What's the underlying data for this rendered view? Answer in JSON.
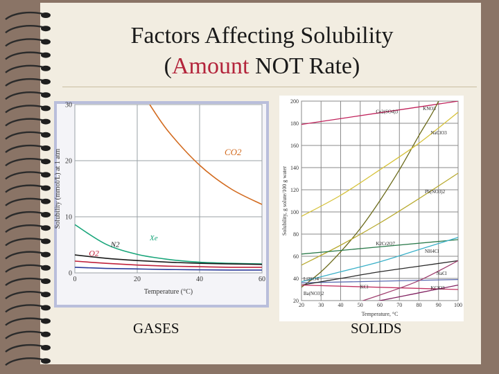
{
  "slide": {
    "title_line1": "Factors Affecting Solubility",
    "title_line2_open": "(",
    "title_line2_accent": "Amount",
    "title_line2_rest": " NOT Rate)",
    "accent_color": "#b3243b",
    "left_label": "GASES",
    "right_label": "SOLIDS"
  },
  "chart_data": [
    {
      "type": "line",
      "title": "",
      "xlabel": "Temperature (°C)",
      "ylabel": "Solubility (mmol/L) at 1 atm",
      "xlim": [
        0,
        60
      ],
      "ylim": [
        0,
        30
      ],
      "xticks": [
        0,
        20,
        40,
        60
      ],
      "yticks": [
        0,
        10,
        20,
        30
      ],
      "grid": true,
      "series": [
        {
          "name": "CO2",
          "color": "#d26a1e",
          "x": [
            24,
            30,
            40,
            50,
            60
          ],
          "y": [
            30,
            25.2,
            19.2,
            15.0,
            12.2
          ]
        },
        {
          "name": "Xe",
          "color": "#18a57a",
          "x": [
            0,
            10,
            20,
            30,
            40,
            50,
            60
          ],
          "y": [
            8.6,
            5.1,
            3.3,
            2.4,
            1.9,
            1.7,
            1.6
          ]
        },
        {
          "name": "N2",
          "color": "#1a1a1a",
          "x": [
            0,
            10,
            20,
            30,
            40,
            50,
            60
          ],
          "y": [
            3.2,
            2.6,
            2.2,
            1.9,
            1.7,
            1.6,
            1.5
          ]
        },
        {
          "name": "O2",
          "color": "#c0203a",
          "x": [
            0,
            10,
            20,
            30,
            40,
            50,
            60
          ],
          "y": [
            2.1,
            1.7,
            1.4,
            1.2,
            1.1,
            1.0,
            1.0
          ]
        },
        {
          "name": "",
          "color": "#2a3a9a",
          "x": [
            0,
            10,
            20,
            30,
            40,
            50,
            60
          ],
          "y": [
            1.0,
            0.8,
            0.7,
            0.6,
            0.55,
            0.5,
            0.5
          ]
        }
      ]
    },
    {
      "type": "line",
      "title": "",
      "xlabel": "Temperature, °C",
      "ylabel": "Solubility, g solute/100 g water",
      "xlim": [
        20,
        100
      ],
      "ylim": [
        20,
        200
      ],
      "xticks": [
        20,
        30,
        40,
        50,
        60,
        70,
        80,
        90,
        100
      ],
      "yticks": [
        20,
        40,
        60,
        80,
        100,
        120,
        140,
        160,
        180,
        200
      ],
      "grid": true,
      "series": [
        {
          "name": "Ce2(SO4)3",
          "color": "#c0205a",
          "x": [
            20,
            100
          ],
          "y": [
            179,
            200
          ]
        },
        {
          "name": "KNO3",
          "color": "#6b6a1a",
          "x": [
            20,
            30,
            40,
            50,
            60,
            70,
            80,
            90,
            100
          ],
          "y": [
            32,
            46,
            64,
            85,
            110,
            138,
            169,
            200,
            245
          ]
        },
        {
          "name": "NaClO3",
          "color": "#d6c23a",
          "x": [
            20,
            40,
            60,
            80,
            100
          ],
          "y": [
            96,
            115,
            138,
            162,
            190
          ]
        },
        {
          "name": "Pb(NO3)2",
          "color": "#b8aa30",
          "x": [
            20,
            40,
            60,
            80,
            100
          ],
          "y": [
            52,
            70,
            90,
            112,
            135
          ]
        },
        {
          "name": "K2Cr2O7",
          "color": "#2a7a4a",
          "x": [
            20,
            100
          ],
          "y": [
            62,
            75
          ]
        },
        {
          "name": "NH4Cl",
          "color": "#3ab0c8",
          "x": [
            20,
            40,
            60,
            80,
            100
          ],
          "y": [
            37,
            46,
            55,
            66,
            77
          ]
        },
        {
          "name": "NaCl",
          "color": "#5a6ab0",
          "x": [
            20,
            100
          ],
          "y": [
            36,
            39
          ]
        },
        {
          "name": "KCl",
          "color": "#2a2a2a",
          "x": [
            20,
            40,
            60,
            80,
            100
          ],
          "y": [
            34,
            40,
            46,
            51,
            56
          ]
        },
        {
          "name": "Li2SO4",
          "color": "#c03060",
          "x": [
            20,
            100
          ],
          "y": [
            34,
            30
          ]
        },
        {
          "name": "KClO3",
          "color": "#a04070",
          "x": [
            20,
            40,
            60,
            80,
            100
          ],
          "y": [
            7,
            14,
            25,
            38,
            56
          ]
        },
        {
          "name": "Ba(NO3)2",
          "color": "#802060",
          "x": [
            20,
            40,
            60,
            80,
            100
          ],
          "y": [
            9,
            14,
            20,
            27,
            34
          ]
        }
      ]
    }
  ]
}
